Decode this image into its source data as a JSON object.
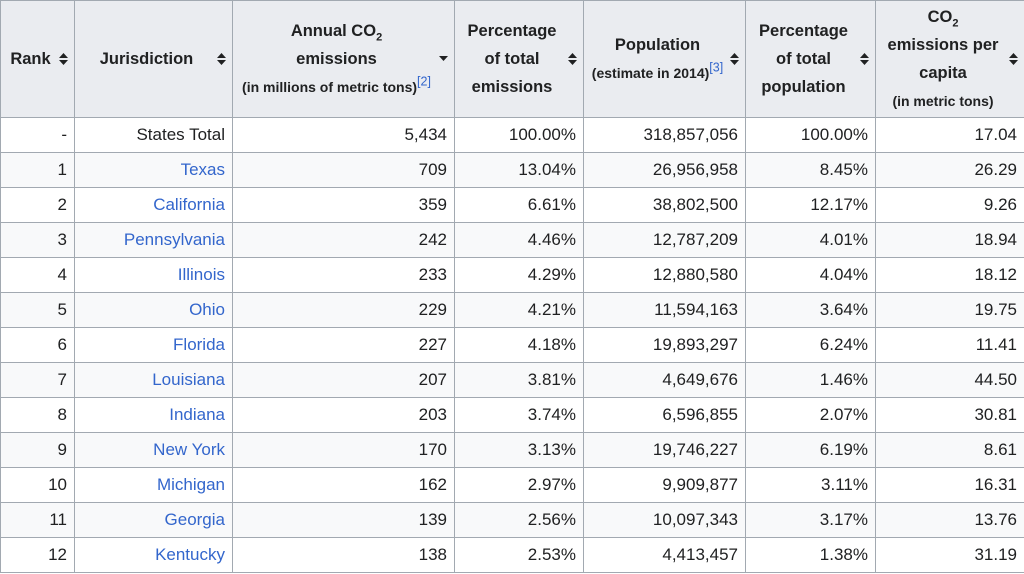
{
  "headers": {
    "rank": "Rank",
    "jurisdiction": "Jurisdiction",
    "emissions_main": "Annual CO",
    "emissions_main_sub": "2",
    "emissions_main2": "emissions",
    "emissions_unit": "(in millions of metric tons)",
    "emissions_ref": "[2]",
    "pct_emissions": "Percentage of total emissions",
    "population_main": "Population",
    "population_note": "(estimate in 2014)",
    "population_ref": "[3]",
    "pct_population": "Percentage of total population",
    "percap_main": "CO",
    "percap_sub": "2",
    "percap_main2": "emissions per capita",
    "percap_unit": "(in metric tons)"
  },
  "icons": {
    "sort": "sort-both-icon",
    "sort_desc": "sort-descending-icon"
  },
  "rows": [
    {
      "rank": "-",
      "jurisdiction": "States Total",
      "link": false,
      "emissions": "5,434",
      "pct_emissions": "100.00%",
      "population": "318,857,056",
      "pct_population": "100.00%",
      "per_capita": "17.04"
    },
    {
      "rank": "1",
      "jurisdiction": "Texas",
      "link": true,
      "emissions": "709",
      "pct_emissions": "13.04%",
      "population": "26,956,958",
      "pct_population": "8.45%",
      "per_capita": "26.29"
    },
    {
      "rank": "2",
      "jurisdiction": "California",
      "link": true,
      "emissions": "359",
      "pct_emissions": "6.61%",
      "population": "38,802,500",
      "pct_population": "12.17%",
      "per_capita": "9.26"
    },
    {
      "rank": "3",
      "jurisdiction": "Pennsylvania",
      "link": true,
      "emissions": "242",
      "pct_emissions": "4.46%",
      "population": "12,787,209",
      "pct_population": "4.01%",
      "per_capita": "18.94"
    },
    {
      "rank": "4",
      "jurisdiction": "Illinois",
      "link": true,
      "emissions": "233",
      "pct_emissions": "4.29%",
      "population": "12,880,580",
      "pct_population": "4.04%",
      "per_capita": "18.12"
    },
    {
      "rank": "5",
      "jurisdiction": "Ohio",
      "link": true,
      "emissions": "229",
      "pct_emissions": "4.21%",
      "population": "11,594,163",
      "pct_population": "3.64%",
      "per_capita": "19.75"
    },
    {
      "rank": "6",
      "jurisdiction": "Florida",
      "link": true,
      "emissions": "227",
      "pct_emissions": "4.18%",
      "population": "19,893,297",
      "pct_population": "6.24%",
      "per_capita": "11.41"
    },
    {
      "rank": "7",
      "jurisdiction": "Louisiana",
      "link": true,
      "emissions": "207",
      "pct_emissions": "3.81%",
      "population": "4,649,676",
      "pct_population": "1.46%",
      "per_capita": "44.50"
    },
    {
      "rank": "8",
      "jurisdiction": "Indiana",
      "link": true,
      "emissions": "203",
      "pct_emissions": "3.74%",
      "population": "6,596,855",
      "pct_population": "2.07%",
      "per_capita": "30.81"
    },
    {
      "rank": "9",
      "jurisdiction": "New York",
      "link": true,
      "emissions": "170",
      "pct_emissions": "3.13%",
      "population": "19,746,227",
      "pct_population": "6.19%",
      "per_capita": "8.61"
    },
    {
      "rank": "10",
      "jurisdiction": "Michigan",
      "link": true,
      "emissions": "162",
      "pct_emissions": "2.97%",
      "population": "9,909,877",
      "pct_population": "3.11%",
      "per_capita": "16.31"
    },
    {
      "rank": "11",
      "jurisdiction": "Georgia",
      "link": true,
      "emissions": "139",
      "pct_emissions": "2.56%",
      "population": "10,097,343",
      "pct_population": "3.17%",
      "per_capita": "13.76"
    },
    {
      "rank": "12",
      "jurisdiction": "Kentucky",
      "link": true,
      "emissions": "138",
      "pct_emissions": "2.53%",
      "population": "4,413,457",
      "pct_population": "1.38%",
      "per_capita": "31.19"
    }
  ]
}
